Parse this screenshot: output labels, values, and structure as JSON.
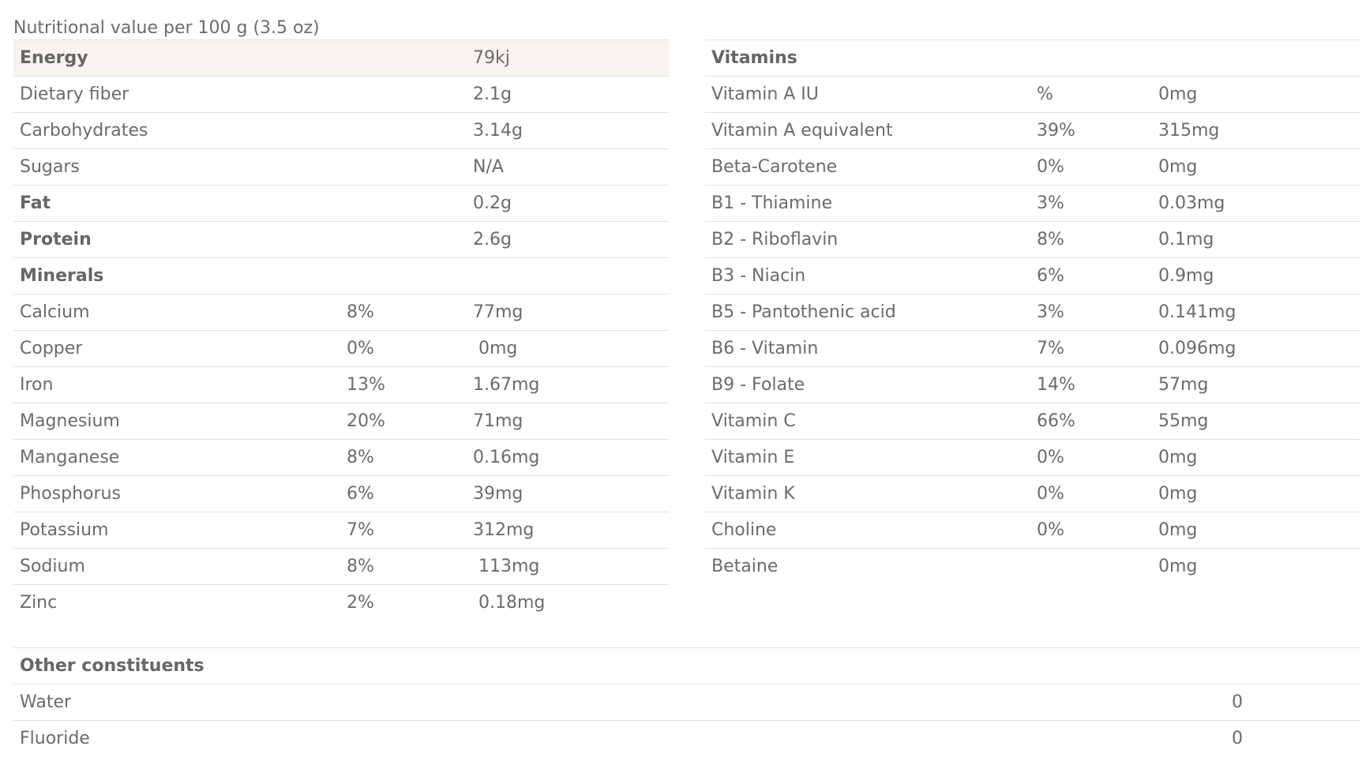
{
  "caption": "Nutritional value per 100 g (3.5 oz)",
  "left_table": [
    {
      "name": "Energy",
      "pct": "",
      "amount": "79kj",
      "bold": true,
      "highlight": true
    },
    {
      "name": "Dietary fiber",
      "pct": "",
      "amount": "2.1g"
    },
    {
      "name": "Carbohydrates",
      "pct": "",
      "amount": "3.14g"
    },
    {
      "name": "Sugars",
      "pct": "",
      "amount": "N/A"
    },
    {
      "name": "Fat",
      "pct": "",
      "amount": "0.2g",
      "bold": true
    },
    {
      "name": "Protein",
      "pct": "",
      "amount": "2.6g",
      "bold": true
    },
    {
      "name": "Minerals",
      "pct": "",
      "amount": "",
      "bold": true
    },
    {
      "name": "Calcium",
      "pct": "8%",
      "amount": "77mg"
    },
    {
      "name": "Copper",
      "pct": "0%",
      "amount": "0mg"
    },
    {
      "name": "Iron",
      "pct": "13%",
      "amount": "1.67mg"
    },
    {
      "name": "Magnesium",
      "pct": "20%",
      "amount": "71mg"
    },
    {
      "name": "Manganese",
      "pct": "8%",
      "amount": "0.16mg"
    },
    {
      "name": "Phosphorus",
      "pct": "6%",
      "amount": "39mg"
    },
    {
      "name": "Potassium",
      "pct": "7%",
      "amount": "312mg"
    },
    {
      "name": "Sodium",
      "pct": "8%",
      "amount": "113mg"
    },
    {
      "name": "Zinc",
      "pct": "2%",
      "amount": "0.18mg"
    }
  ],
  "right_table": [
    {
      "name": "Vitamins",
      "pct": "",
      "amount": "",
      "bold": true
    },
    {
      "name": "Vitamin A IU",
      "pct": "%",
      "amount": "0mg"
    },
    {
      "name": "Vitamin A equivalent",
      "pct": "39%",
      "amount": "315mg"
    },
    {
      "name": "Beta-Carotene",
      "pct": "0%",
      "amount": "0mg"
    },
    {
      "name": "B1 - Thiamine",
      "pct": "3%",
      "amount": "0.03mg"
    },
    {
      "name": "B2 - Riboflavin",
      "pct": "8%",
      "amount": "0.1mg"
    },
    {
      "name": "B3 - Niacin",
      "pct": "6%",
      "amount": "0.9mg"
    },
    {
      "name": "B5 - Pantothenic acid",
      "pct": "3%",
      "amount": "0.141mg"
    },
    {
      "name": "B6 - Vitamin",
      "pct": "7%",
      "amount": "0.096mg"
    },
    {
      "name": "B9 - Folate",
      "pct": "14%",
      "amount": "57mg"
    },
    {
      "name": "Vitamin C",
      "pct": "66%",
      "amount": "55mg"
    },
    {
      "name": "Vitamin E",
      "pct": "0%",
      "amount": "0mg"
    },
    {
      "name": "Vitamin K",
      "pct": "0%",
      "amount": "0mg"
    },
    {
      "name": "Choline",
      "pct": "0%",
      "amount": "0mg"
    },
    {
      "name": "Betaine",
      "pct": "",
      "amount": "0mg"
    }
  ],
  "other_table": [
    {
      "name": "Other constituents",
      "value": "",
      "bold": true
    },
    {
      "name": "Water",
      "value": "0"
    },
    {
      "name": "Fluoride",
      "value": "0"
    }
  ]
}
